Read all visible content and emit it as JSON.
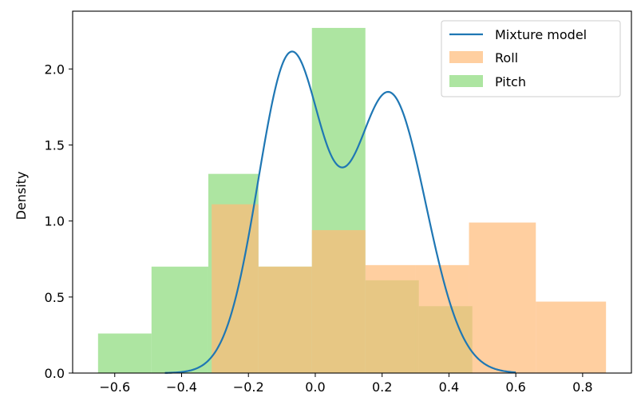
{
  "chart_data": {
    "type": "histogram",
    "xlabel": "",
    "ylabel": "Density",
    "xlim": [
      -0.726,
      0.946
    ],
    "ylim": [
      0,
      2.38
    ],
    "xticks": [
      "−0.6",
      "−0.4",
      "−0.2",
      "0.0",
      "0.2",
      "0.4",
      "0.6",
      "0.8"
    ],
    "yticks": [
      "0.0",
      "0.5",
      "1.0",
      "1.5",
      "2.0"
    ],
    "grid": false,
    "legend_position": "top-right",
    "series": [
      {
        "name": "Mixture model",
        "type": "line",
        "color": "#1f77b4",
        "components": [
          {
            "weight": 0.5,
            "mean": -0.075,
            "sd": 0.0965
          },
          {
            "weight": 0.5,
            "mean": 0.222,
            "sd": 0.109
          }
        ],
        "x_range": [
          -0.45,
          0.6
        ]
      },
      {
        "name": "Roll",
        "type": "histogram",
        "color": "#ffbb78",
        "bins": [
          {
            "x0": -0.31,
            "x1": -0.17,
            "value": 1.11
          },
          {
            "x0": -0.17,
            "x1": -0.01,
            "value": 0.7
          },
          {
            "x0": -0.01,
            "x1": 0.15,
            "value": 0.94
          },
          {
            "x0": 0.15,
            "x1": 0.3,
            "value": 0.71
          },
          {
            "x0": 0.3,
            "x1": 0.46,
            "value": 0.71
          },
          {
            "x0": 0.46,
            "x1": 0.66,
            "value": 0.99
          },
          {
            "x0": 0.66,
            "x1": 0.87,
            "value": 0.47
          }
        ]
      },
      {
        "name": "Pitch",
        "type": "histogram",
        "color": "#98df8a",
        "bins": [
          {
            "x0": -0.65,
            "x1": -0.49,
            "value": 0.26
          },
          {
            "x0": -0.49,
            "x1": -0.32,
            "value": 0.7
          },
          {
            "x0": -0.32,
            "x1": -0.17,
            "value": 1.31
          },
          {
            "x0": -0.17,
            "x1": -0.01,
            "value": 0.7
          },
          {
            "x0": -0.01,
            "x1": 0.15,
            "value": 2.27
          },
          {
            "x0": 0.15,
            "x1": 0.31,
            "value": 0.61
          },
          {
            "x0": 0.31,
            "x1": 0.47,
            "value": 0.44
          }
        ]
      }
    ]
  }
}
